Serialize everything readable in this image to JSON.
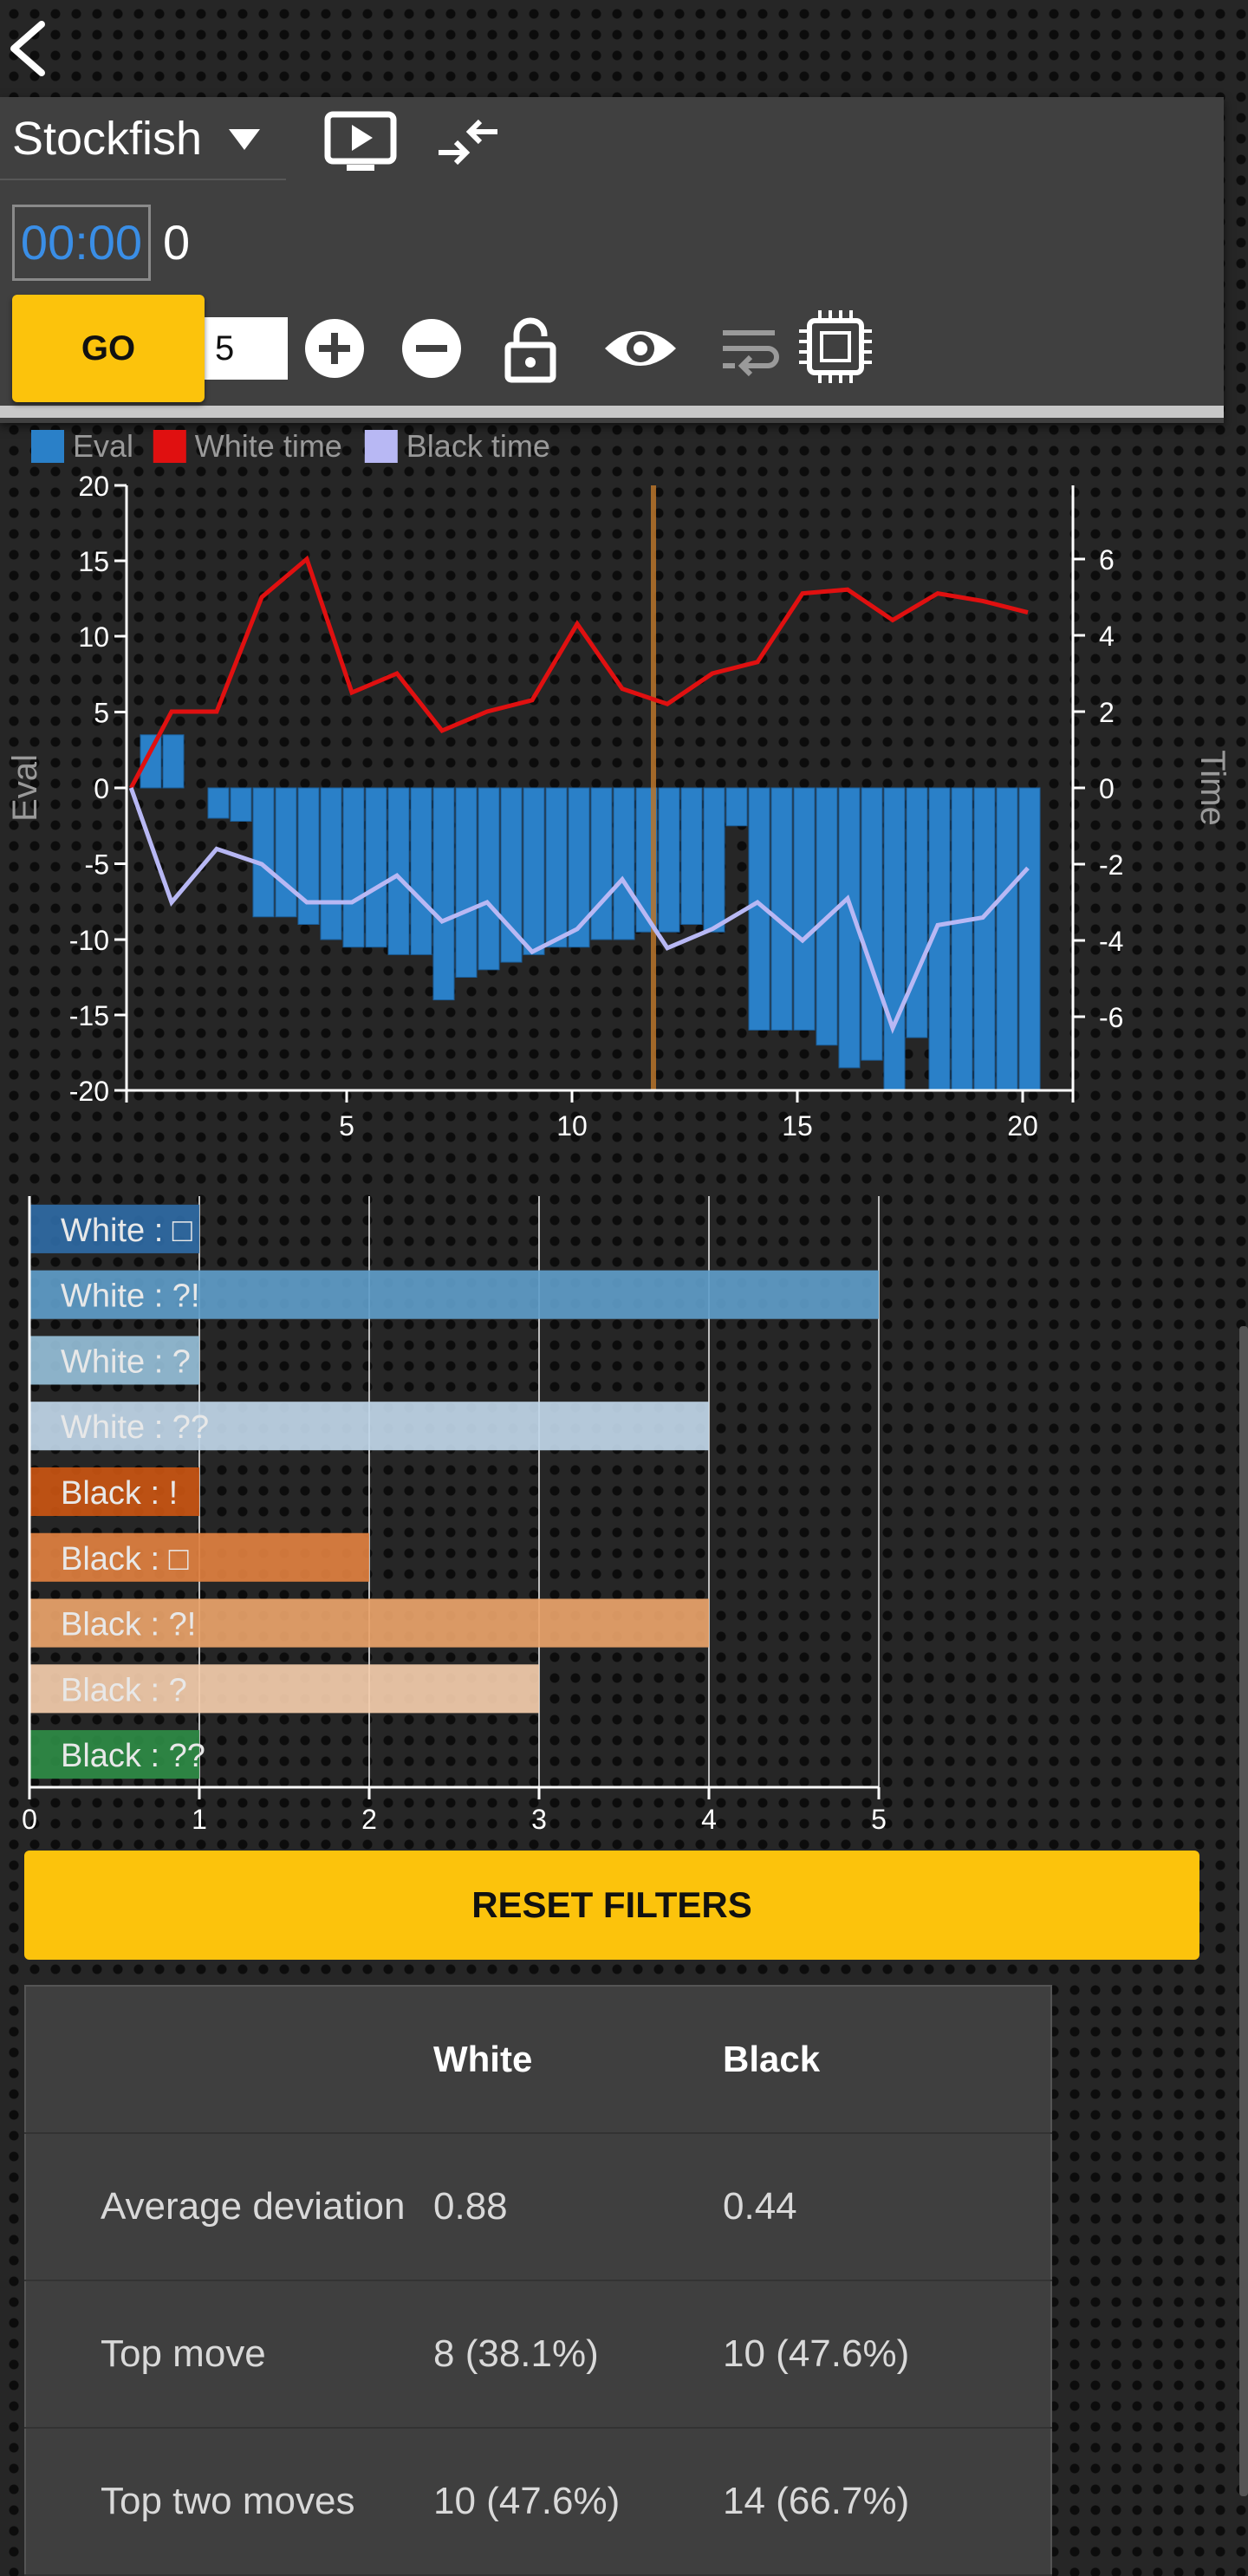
{
  "engine": {
    "name": "Stockfish",
    "timer": "00:00",
    "nodes": "0",
    "go_label": "GO",
    "depth_value": "5"
  },
  "icons": [
    "back-arrow-icon",
    "caret-down-icon",
    "analyse-board-icon",
    "swap-sides-icon",
    "plus-icon",
    "minus-icon",
    "lock-icon",
    "eye-icon",
    "wrap-lines-icon",
    "engine-chip-icon"
  ],
  "colors": {
    "accent": "#fcc30c",
    "eval_bar": "#2a80c8",
    "white_time": "#e01010",
    "black_time": "#b8b8f4",
    "current_move_line": "#b8742a"
  },
  "chart_data": [
    {
      "type": "bar+line",
      "legend": [
        "Eval",
        "White time",
        "Black time"
      ],
      "ylabel": "Eval",
      "y2label": "Time",
      "ylim": [
        -20,
        20
      ],
      "yticks": [
        "20",
        "15",
        "10",
        "5",
        "0",
        "-5",
        "-10",
        "-15",
        "-20"
      ],
      "y2ticks": [
        "6",
        "4",
        "2",
        "0",
        "-2",
        "-4",
        "-6"
      ],
      "xticks": [
        "5",
        "10",
        "15",
        "20"
      ],
      "xlim": [
        0,
        21
      ],
      "current_move": 11.5,
      "eval_bars": [
        {
          "x": 0.5,
          "v": 3.5
        },
        {
          "x": 1.0,
          "v": 3.5
        },
        {
          "x": 2.0,
          "v": -2.0
        },
        {
          "x": 2.5,
          "v": -2.2
        },
        {
          "x": 3.0,
          "v": -8.5
        },
        {
          "x": 3.5,
          "v": -8.5
        },
        {
          "x": 4.0,
          "v": -9.0
        },
        {
          "x": 4.5,
          "v": -10.0
        },
        {
          "x": 5.0,
          "v": -10.5
        },
        {
          "x": 5.5,
          "v": -10.5
        },
        {
          "x": 6.0,
          "v": -11.0
        },
        {
          "x": 6.5,
          "v": -11.0
        },
        {
          "x": 7.0,
          "v": -14.0
        },
        {
          "x": 7.5,
          "v": -12.5
        },
        {
          "x": 8.0,
          "v": -12.0
        },
        {
          "x": 8.5,
          "v": -11.5
        },
        {
          "x": 9.0,
          "v": -11.0
        },
        {
          "x": 9.5,
          "v": -10.5
        },
        {
          "x": 10.0,
          "v": -10.5
        },
        {
          "x": 10.5,
          "v": -10.0
        },
        {
          "x": 11.0,
          "v": -10.0
        },
        {
          "x": 11.5,
          "v": -9.5
        },
        {
          "x": 12.0,
          "v": -9.5
        },
        {
          "x": 12.5,
          "v": -9.0
        },
        {
          "x": 13.0,
          "v": -9.5
        },
        {
          "x": 13.5,
          "v": -2.5
        },
        {
          "x": 14.0,
          "v": -16.0
        },
        {
          "x": 14.5,
          "v": -16.0
        },
        {
          "x": 15.0,
          "v": -16.0
        },
        {
          "x": 15.5,
          "v": -17.0
        },
        {
          "x": 16.0,
          "v": -18.5
        },
        {
          "x": 16.5,
          "v": -18.0
        },
        {
          "x": 17.0,
          "v": -23.0
        },
        {
          "x": 17.5,
          "v": -16.5
        },
        {
          "x": 18.0,
          "v": -20.0
        },
        {
          "x": 18.5,
          "v": -21.0
        },
        {
          "x": 19.0,
          "v": -22.0
        },
        {
          "x": 19.5,
          "v": -23.0
        },
        {
          "x": 20.0,
          "v": -23.0
        }
      ],
      "white_time": [
        [
          0.1,
          0.0
        ],
        [
          1.0,
          2.0
        ],
        [
          2.0,
          2.0
        ],
        [
          3.0,
          5.0
        ],
        [
          4.0,
          6.0
        ],
        [
          5.0,
          2.5
        ],
        [
          6.0,
          3.0
        ],
        [
          7.0,
          1.5
        ],
        [
          8.0,
          2.0
        ],
        [
          9.0,
          2.3
        ],
        [
          10.0,
          4.3
        ],
        [
          11.0,
          2.6
        ],
        [
          12.0,
          2.2
        ],
        [
          13.0,
          3.0
        ],
        [
          14.0,
          3.3
        ],
        [
          15.0,
          5.1
        ],
        [
          16.0,
          5.2
        ],
        [
          17.0,
          4.4
        ],
        [
          18.0,
          5.1
        ],
        [
          19.0,
          4.9
        ],
        [
          20.0,
          4.6
        ]
      ],
      "black_time": [
        [
          0.1,
          0.0
        ],
        [
          1.0,
          -3.0
        ],
        [
          2.0,
          -1.6
        ],
        [
          3.0,
          -2.0
        ],
        [
          4.0,
          -3.0
        ],
        [
          5.0,
          -3.0
        ],
        [
          6.0,
          -2.3
        ],
        [
          7.0,
          -3.5
        ],
        [
          8.0,
          -3.0
        ],
        [
          9.0,
          -4.3
        ],
        [
          10.0,
          -3.7
        ],
        [
          11.0,
          -2.4
        ],
        [
          12.0,
          -4.2
        ],
        [
          13.0,
          -3.7
        ],
        [
          14.0,
          -3.0
        ],
        [
          15.0,
          -4.0
        ],
        [
          16.0,
          -2.9
        ],
        [
          17.0,
          -6.3
        ],
        [
          18.0,
          -3.6
        ],
        [
          19.0,
          -3.4
        ],
        [
          20.0,
          -2.1
        ]
      ]
    },
    {
      "type": "bar",
      "orientation": "horizontal",
      "categories": [
        "White : □",
        "White : ?!",
        "White : ?",
        "White : ??",
        "Black : !",
        "Black : □",
        "Black : ?!",
        "Black : ?",
        "Black : ??"
      ],
      "values": [
        1,
        5,
        1,
        4,
        1,
        2,
        4,
        3,
        1
      ],
      "colors": [
        "#2f6aa4",
        "#5e9cc8",
        "#95bed7",
        "#c0d6e8",
        "#c95512",
        "#e08040",
        "#e9a36a",
        "#f3ccab",
        "#2e8b45"
      ],
      "xticks": [
        "0",
        "1",
        "2",
        "3",
        "4",
        "5"
      ],
      "xlim": [
        0,
        5
      ]
    }
  ],
  "reset_label": "RESET FILTERS",
  "stats": {
    "headers": [
      "",
      "White",
      "Black"
    ],
    "rows": [
      [
        "Average deviation",
        "0.88",
        "0.44"
      ],
      [
        "Top move",
        "8 (38.1%)",
        "10 (47.6%)"
      ],
      [
        "Top two moves",
        "10 (47.6%)",
        "14 (66.7%)"
      ]
    ]
  }
}
